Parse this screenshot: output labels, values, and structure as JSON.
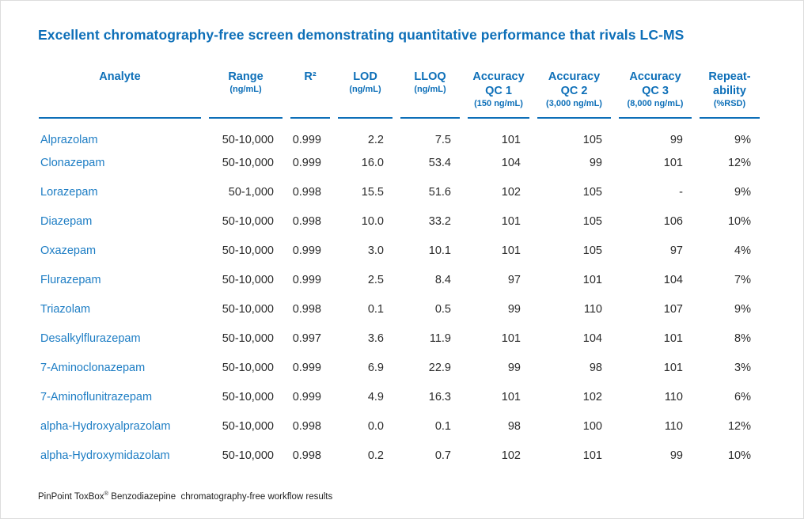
{
  "title": "Excellent chromatography-free screen demonstrating quantitative performance that rivals LC-MS",
  "table": {
    "columns": [
      {
        "label": "Analyte",
        "sub": ""
      },
      {
        "label": "Range",
        "sub": "(ng/mL)"
      },
      {
        "label": "R²",
        "sub": ""
      },
      {
        "label": "LOD",
        "sub": "(ng/mL)"
      },
      {
        "label": "LLOQ",
        "sub": "(ng/mL)"
      },
      {
        "label": "Accuracy\nQC 1",
        "sub": "(150 ng/mL)"
      },
      {
        "label": "Accuracy\nQC 2",
        "sub": "(3,000 ng/mL)"
      },
      {
        "label": "Accuracy\nQC 3",
        "sub": "(8,000 ng/mL)"
      },
      {
        "label": "Repeat-\nability",
        "sub": "(%RSD)"
      }
    ],
    "rows": [
      [
        "Alprazolam",
        "50-10,000",
        "0.999",
        "2.2",
        "7.5",
        "101",
        "105",
        "99",
        "9%"
      ],
      [
        "Clonazepam",
        "50-10,000",
        "0.999",
        "16.0",
        "53.4",
        "104",
        "99",
        "101",
        "12%"
      ],
      [
        "Lorazepam",
        "50-1,000",
        "0.998",
        "15.5",
        "51.6",
        "102",
        "105",
        "-",
        "9%"
      ],
      [
        "Diazepam",
        "50-10,000",
        "0.998",
        "10.0",
        "33.2",
        "101",
        "105",
        "106",
        "10%"
      ],
      [
        "Oxazepam",
        "50-10,000",
        "0.999",
        "3.0",
        "10.1",
        "101",
        "105",
        "97",
        "4%"
      ],
      [
        "Flurazepam",
        "50-10,000",
        "0.999",
        "2.5",
        "8.4",
        "97",
        "101",
        "104",
        "7%"
      ],
      [
        "Triazolam",
        "50-10,000",
        "0.998",
        "0.1",
        "0.5",
        "99",
        "110",
        "107",
        "9%"
      ],
      [
        "Desalkylflurazepam",
        "50-10,000",
        "0.997",
        "3.6",
        "11.9",
        "101",
        "104",
        "101",
        "8%"
      ],
      [
        "7-Aminoclonazepam",
        "50-10,000",
        "0.999",
        "6.9",
        "22.9",
        "99",
        "98",
        "101",
        "3%"
      ],
      [
        "7-Aminoflunitrazepam",
        "50-10,000",
        "0.999",
        "4.9",
        "16.3",
        "101",
        "102",
        "110",
        "6%"
      ],
      [
        "alpha-Hydroxyalprazolam",
        "50-10,000",
        "0.998",
        "0.0",
        "0.1",
        "98",
        "100",
        "110",
        "12%"
      ],
      [
        "alpha-Hydroxymidazolam",
        "50-10,000",
        "0.998",
        "0.2",
        "0.7",
        "102",
        "101",
        "99",
        "10%"
      ]
    ]
  },
  "footer": {
    "product": "PinPoint ToxBox",
    "reg_mark": "®",
    "rest": " Benzodiazepine  chromatography-free workflow results"
  },
  "colors": {
    "accent_blue": "#0d6fb8",
    "analyte_blue": "#1d7dc4",
    "body_text": "#2b2b2b",
    "footer_text": "#1f1f1f",
    "page_border": "#dcdcdc"
  }
}
